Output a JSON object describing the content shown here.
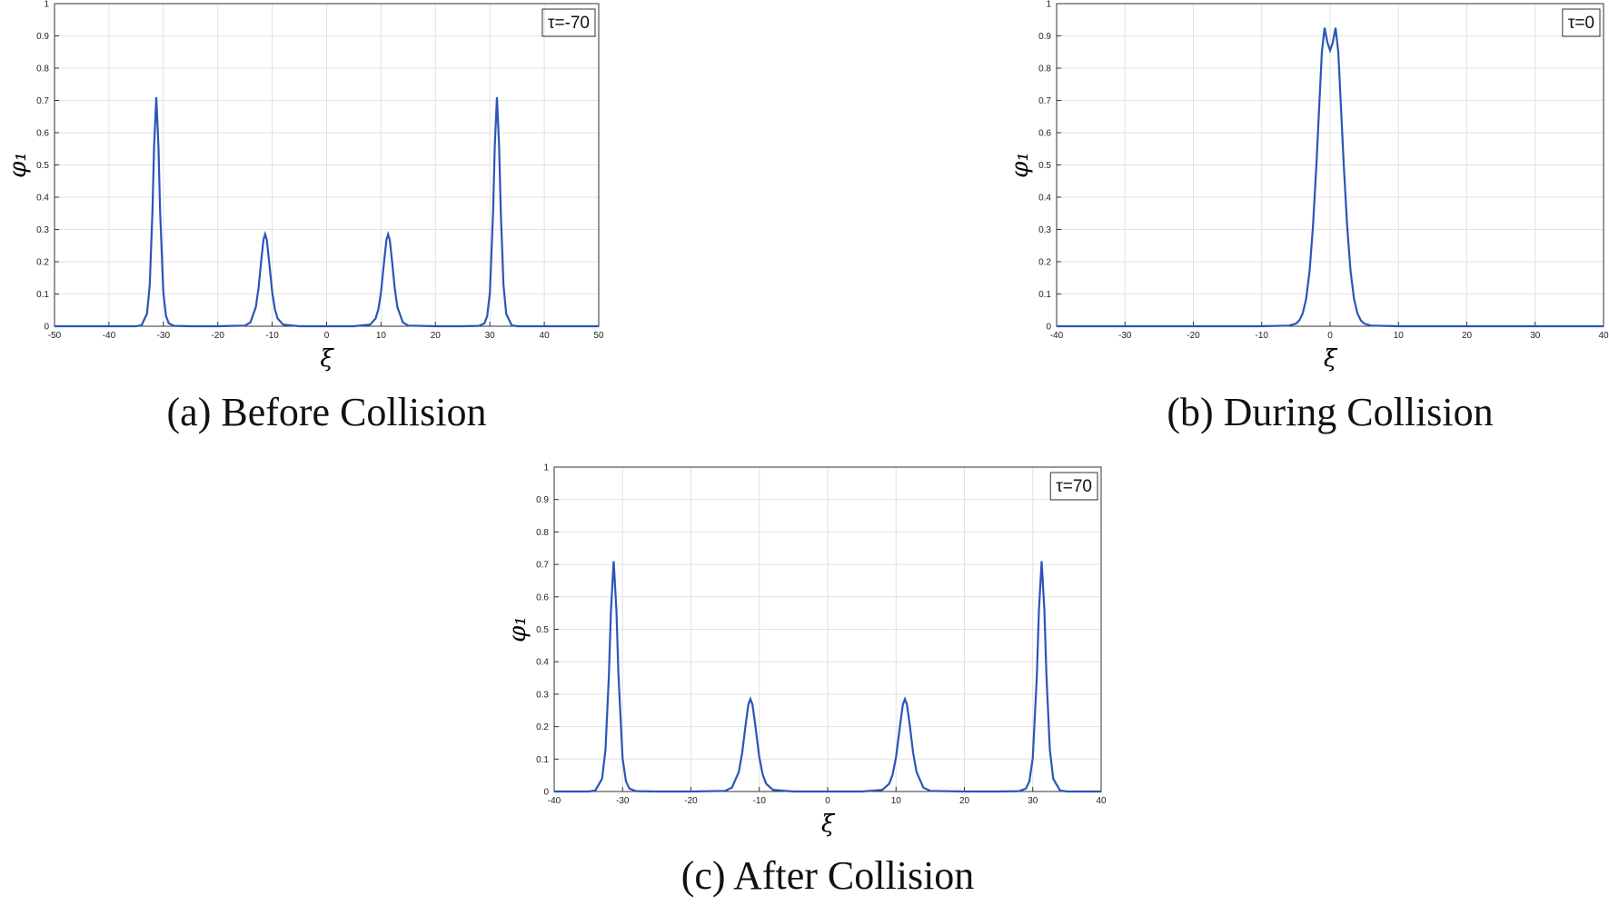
{
  "chart_data": [
    {
      "type": "line",
      "caption": "(a) Before Collision",
      "annotation": "τ=-70",
      "xlabel": "ξ",
      "ylabel": "φ₁",
      "color": "#2b55b8",
      "grid": true,
      "xlim": [
        -50,
        50
      ],
      "ylim": [
        0,
        1
      ],
      "xticks": [
        -50,
        -40,
        -30,
        -20,
        -10,
        0,
        10,
        20,
        30,
        40,
        50
      ],
      "yticks": [
        0,
        0.1,
        0.2,
        0.3,
        0.4,
        0.5,
        0.6,
        0.7,
        0.8,
        0.9,
        1
      ],
      "x": [
        -50,
        -40,
        -35,
        -34,
        -33,
        -32.5,
        -32,
        -31.7,
        -31.3,
        -30.9,
        -30.6,
        -30,
        -29.5,
        -29,
        -28,
        -25,
        -20,
        -15,
        -14,
        -13,
        -12.5,
        -12,
        -11.6,
        -11.3,
        -11,
        -10.6,
        -10,
        -9.5,
        -9,
        -8,
        -5,
        0,
        5,
        8,
        9,
        9.5,
        10,
        10.6,
        11,
        11.3,
        11.6,
        12,
        12.5,
        13,
        14,
        15,
        20,
        25,
        28,
        29,
        29.5,
        30,
        30.6,
        30.9,
        31.3,
        31.7,
        32,
        32.5,
        33,
        34,
        35,
        40,
        50
      ],
      "values": [
        0,
        0,
        0,
        0.003,
        0.039,
        0.128,
        0.358,
        0.558,
        0.71,
        0.558,
        0.358,
        0.103,
        0.031,
        0.009,
        0.001,
        0,
        0,
        0.002,
        0.012,
        0.06,
        0.12,
        0.206,
        0.268,
        0.285,
        0.268,
        0.206,
        0.106,
        0.052,
        0.024,
        0.005,
        0,
        0,
        0,
        0.005,
        0.024,
        0.052,
        0.106,
        0.206,
        0.268,
        0.285,
        0.268,
        0.206,
        0.12,
        0.06,
        0.012,
        0.002,
        0,
        0,
        0.001,
        0.009,
        0.031,
        0.103,
        0.358,
        0.558,
        0.71,
        0.558,
        0.358,
        0.128,
        0.039,
        0.003,
        0,
        0,
        0
      ]
    },
    {
      "type": "line",
      "caption": "(b) During Collision",
      "annotation": "τ=0",
      "xlabel": "ξ",
      "ylabel": "φ₁",
      "color": "#2b55b8",
      "grid": true,
      "xlim": [
        -40,
        40
      ],
      "ylim": [
        0,
        1
      ],
      "xticks": [
        -40,
        -30,
        -20,
        -10,
        0,
        10,
        20,
        30,
        40
      ],
      "yticks": [
        0,
        0.1,
        0.2,
        0.3,
        0.4,
        0.5,
        0.6,
        0.7,
        0.8,
        0.9,
        1
      ],
      "x": [
        -40,
        -10,
        -6,
        -5,
        -4.5,
        -4,
        -3.5,
        -3,
        -2.5,
        -2,
        -1.5,
        -1.2,
        -0.8,
        -0.4,
        0,
        0.4,
        0.8,
        1.2,
        1.5,
        2,
        2.5,
        3,
        3.5,
        4,
        4.5,
        5,
        6,
        10,
        40
      ],
      "values": [
        0,
        0,
        0.002,
        0.008,
        0.018,
        0.04,
        0.085,
        0.17,
        0.31,
        0.5,
        0.72,
        0.85,
        0.925,
        0.88,
        0.855,
        0.88,
        0.925,
        0.85,
        0.72,
        0.5,
        0.31,
        0.17,
        0.085,
        0.04,
        0.018,
        0.008,
        0.002,
        0,
        0
      ]
    },
    {
      "type": "line",
      "caption": "(c) After Collision",
      "annotation": "τ=70",
      "xlabel": "ξ",
      "ylabel": "φ₁",
      "color": "#2b55b8",
      "grid": true,
      "xlim": [
        -40,
        40
      ],
      "ylim": [
        0,
        1
      ],
      "xticks": [
        -40,
        -30,
        -20,
        -10,
        0,
        10,
        20,
        30,
        40
      ],
      "yticks": [
        0,
        0.1,
        0.2,
        0.3,
        0.4,
        0.5,
        0.6,
        0.7,
        0.8,
        0.9,
        1
      ],
      "x": [
        -40,
        -35,
        -34,
        -33,
        -32.5,
        -32,
        -31.7,
        -31.3,
        -30.9,
        -30.6,
        -30,
        -29.5,
        -29,
        -28,
        -25,
        -20,
        -15,
        -14,
        -13,
        -12.5,
        -12,
        -11.6,
        -11.3,
        -11,
        -10.6,
        -10,
        -9.5,
        -9,
        -8,
        -5,
        0,
        5,
        8,
        9,
        9.5,
        10,
        10.6,
        11,
        11.3,
        11.6,
        12,
        12.5,
        13,
        14,
        15,
        20,
        25,
        28,
        29,
        29.5,
        30,
        30.6,
        30.9,
        31.3,
        31.7,
        32,
        32.5,
        33,
        34,
        35,
        40
      ],
      "values": [
        0,
        0,
        0.003,
        0.039,
        0.128,
        0.358,
        0.558,
        0.71,
        0.558,
        0.358,
        0.103,
        0.031,
        0.009,
        0.001,
        0,
        0,
        0.002,
        0.012,
        0.06,
        0.12,
        0.206,
        0.268,
        0.285,
        0.268,
        0.206,
        0.106,
        0.052,
        0.024,
        0.005,
        0,
        0,
        0,
        0.005,
        0.024,
        0.052,
        0.106,
        0.206,
        0.268,
        0.285,
        0.268,
        0.206,
        0.12,
        0.06,
        0.012,
        0.002,
        0,
        0,
        0.001,
        0.009,
        0.031,
        0.103,
        0.358,
        0.558,
        0.71,
        0.558,
        0.358,
        0.128,
        0.039,
        0.003,
        0,
        0
      ]
    }
  ]
}
